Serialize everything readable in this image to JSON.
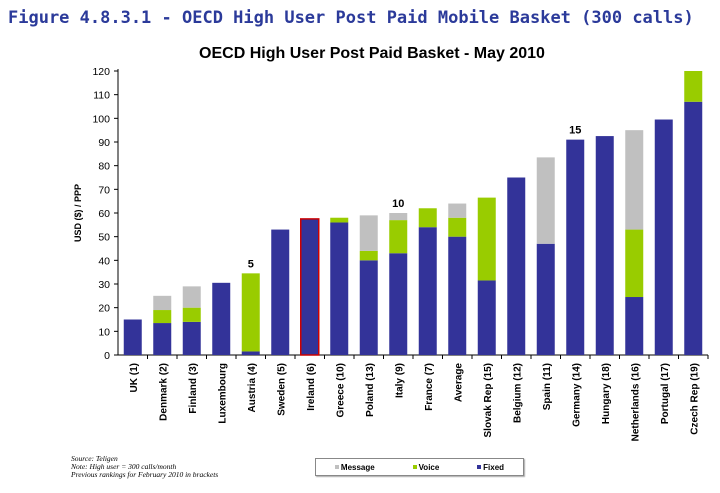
{
  "figure_title": "Figure 4.8.3.1 - OECD High User Post Paid Mobile Basket (300 calls)",
  "notes": [
    "Source: Teligen",
    "Note: High user = 300 calls/month",
    "Previous rankings for February 2010 in brackets"
  ],
  "chart_data": {
    "type": "bar",
    "stacked": true,
    "title": "OECD High User Post Paid Basket - May 2010",
    "xlabel": "",
    "ylabel": "USD ($) / PPP",
    "ylim": [
      0,
      120
    ],
    "yticks": [
      0,
      10,
      20,
      30,
      40,
      50,
      60,
      70,
      80,
      90,
      100,
      110,
      120
    ],
    "grid": false,
    "legend_placement": "bottom",
    "categories": [
      "UK (1)",
      "Denmark (2)",
      "Finland (3)",
      "Luxembourg",
      "Austria (4)",
      "Sweden (5)",
      "Ireland (6)",
      "Greece (10)",
      "Poland (13)",
      "Italy (9)",
      "France (7)",
      "Average",
      "Slovak Rep (15)",
      "Belgium (12)",
      "Spain (11)",
      "Germany (14)",
      "Hungary (18)",
      "Netherlands (16)",
      "Portugal (17)",
      "Czech Rep (19)"
    ],
    "series": [
      {
        "name": "Fixed",
        "color": "#333399",
        "values": [
          15,
          13.5,
          14,
          30.5,
          1.5,
          53,
          57.5,
          56,
          40,
          43,
          54,
          50,
          31.5,
          75,
          47,
          91,
          92.5,
          24.5,
          99.5,
          107
        ]
      },
      {
        "name": "Voice",
        "color": "#99cc00",
        "values": [
          0,
          5.5,
          6,
          0,
          33,
          0,
          0,
          2,
          4,
          14,
          8,
          8,
          35,
          0,
          0,
          0,
          0,
          28.5,
          0,
          13
        ]
      },
      {
        "name": "Message",
        "color": "#c0c0c0",
        "values": [
          0,
          6,
          9,
          0,
          0,
          0,
          0,
          0,
          15,
          3,
          0,
          6,
          0,
          0,
          36.5,
          0,
          0,
          42,
          0,
          0
        ]
      }
    ],
    "legend_order": [
      "Message",
      "Voice",
      "Fixed"
    ],
    "highlighted_category": "Ireland (6)",
    "highlight_color": "#cc0000",
    "annotations": [
      {
        "category": "Austria (4)",
        "text": "5"
      },
      {
        "category": "Italy (9)",
        "text": "10"
      },
      {
        "category": "Germany (14)",
        "text": "15"
      }
    ]
  }
}
